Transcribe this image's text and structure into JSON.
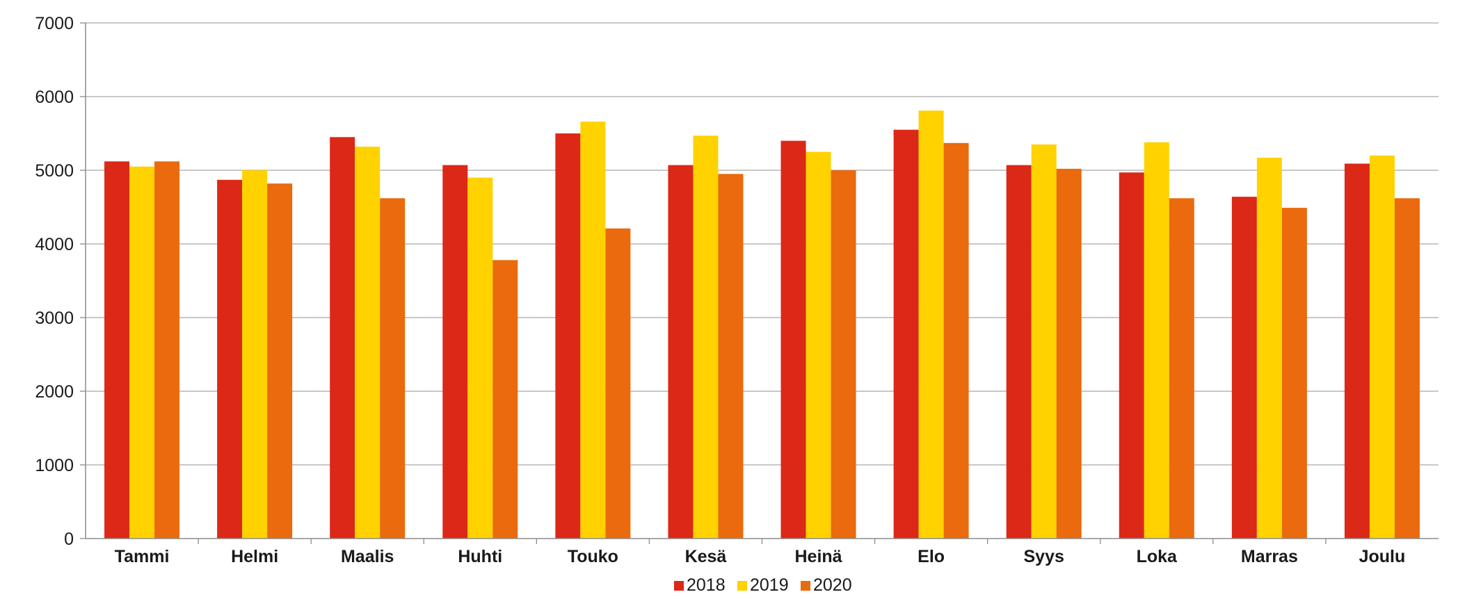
{
  "chart_data": {
    "type": "bar",
    "title": "",
    "xlabel": "",
    "ylabel": "",
    "categories": [
      "Tammi",
      "Helmi",
      "Maalis",
      "Huhti",
      "Touko",
      "Kesä",
      "Heinä",
      "Elo",
      "Syys",
      "Loka",
      "Marras",
      "Joulu"
    ],
    "series": [
      {
        "name": "2018",
        "color": "#dc2816",
        "values": [
          5120,
          4870,
          5450,
          5070,
          5500,
          5070,
          5400,
          5550,
          5070,
          4970,
          4640,
          5090
        ]
      },
      {
        "name": "2019",
        "color": "#ffd200",
        "values": [
          5050,
          5000,
          5320,
          4900,
          5660,
          5470,
          5250,
          5810,
          5350,
          5380,
          5170,
          5200
        ]
      },
      {
        "name": "2020",
        "color": "#ea6a0d",
        "values": [
          5120,
          4820,
          4620,
          3780,
          4210,
          4950,
          5000,
          5370,
          5020,
          4620,
          4490,
          4620
        ]
      }
    ],
    "ylim": [
      0,
      7000
    ],
    "yticks": [
      0,
      1000,
      2000,
      3000,
      4000,
      5000,
      6000,
      7000
    ],
    "grid": true,
    "legend": "bottom-center"
  }
}
